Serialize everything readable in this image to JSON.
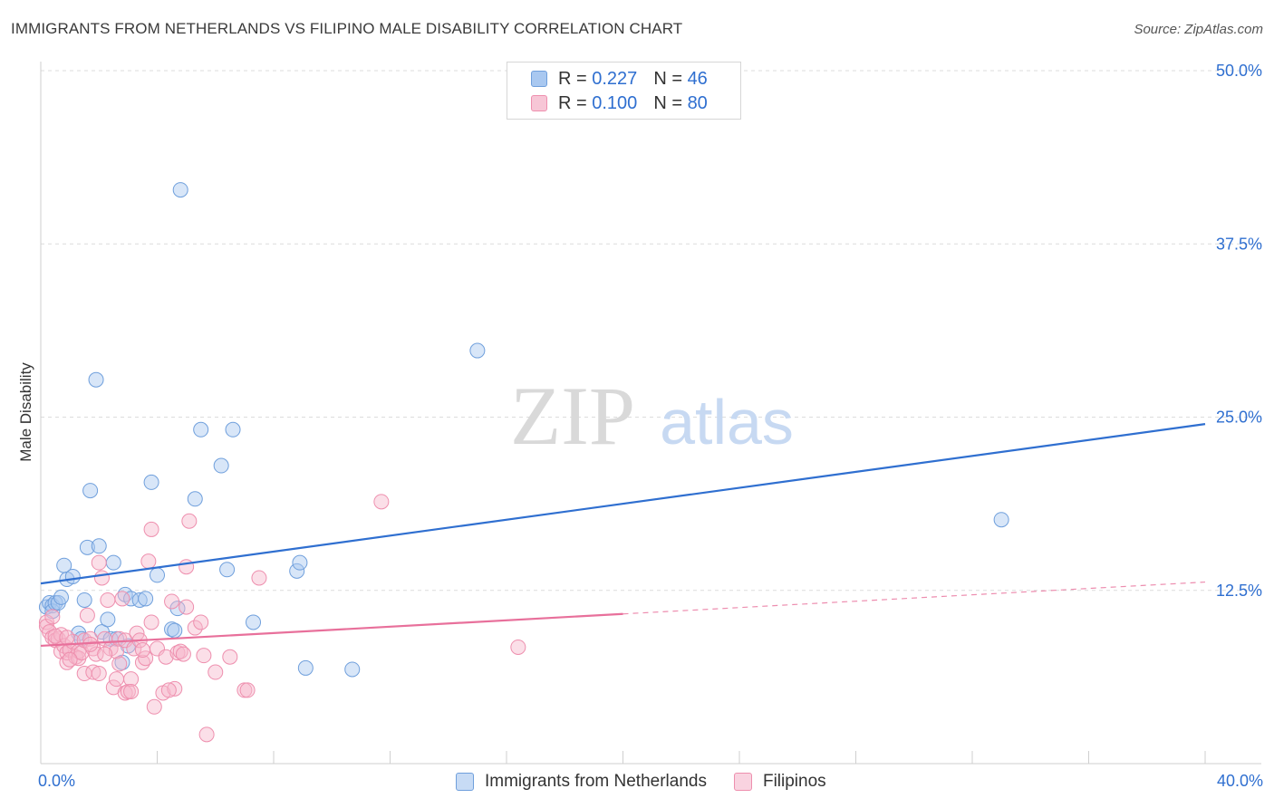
{
  "title": "IMMIGRANTS FROM NETHERLANDS VS FILIPINO MALE DISABILITY CORRELATION CHART",
  "source": "Source: ZipAtlas.com",
  "watermark": {
    "zip": "ZIP",
    "atlas": "atlas"
  },
  "legend_top": {
    "rows": [
      {
        "r_label": "R =",
        "r_value": "0.227",
        "n_label": "N =",
        "n_value": "46"
      },
      {
        "r_label": "R =",
        "r_value": "0.100",
        "n_label": "N =",
        "n_value": "80"
      }
    ]
  },
  "colors": {
    "blue_fill": "#a9c8f0",
    "blue_stroke": "#6f9fdc",
    "blue_line": "#2f6fd0",
    "pink_fill": "#f7b7cb",
    "pink_stroke": "#ee8fae",
    "pink_line": "#e8709b",
    "tick_text": "#2f6fd0",
    "grid": "#dcdcdc"
  },
  "chart_data": {
    "type": "scatter",
    "title": "IMMIGRANTS FROM NETHERLANDS VS FILIPINO MALE DISABILITY CORRELATION CHART",
    "xlabel": "",
    "ylabel": "Male Disability",
    "xlim": [
      0,
      40
    ],
    "ylim": [
      0,
      50
    ],
    "x_tick_labels": [
      "0.0%",
      "40.0%"
    ],
    "y_ticks": [
      12.5,
      25.0,
      37.5,
      50.0
    ],
    "y_tick_labels": [
      "12.5%",
      "25.0%",
      "37.5%",
      "50.0%"
    ],
    "series": [
      {
        "name": "Immigrants from Netherlands",
        "color": "blue",
        "R": 0.227,
        "N": 46,
        "trend": {
          "x0": 0,
          "y0": 13.0,
          "x1": 40,
          "y1": 24.5,
          "dashed_from": null
        },
        "points": [
          [
            0.2,
            11.3
          ],
          [
            0.3,
            11.6
          ],
          [
            0.4,
            11.4
          ],
          [
            0.4,
            11.0
          ],
          [
            0.5,
            11.6
          ],
          [
            0.6,
            11.6
          ],
          [
            0.7,
            12.0
          ],
          [
            0.8,
            14.3
          ],
          [
            0.9,
            13.3
          ],
          [
            1.1,
            13.5
          ],
          [
            1.3,
            9.4
          ],
          [
            1.4,
            9.0
          ],
          [
            1.5,
            11.8
          ],
          [
            1.6,
            15.6
          ],
          [
            1.7,
            19.7
          ],
          [
            1.9,
            27.7
          ],
          [
            2.0,
            15.7
          ],
          [
            2.1,
            9.5
          ],
          [
            2.3,
            10.4
          ],
          [
            2.4,
            9.0
          ],
          [
            2.5,
            14.5
          ],
          [
            2.6,
            9.0
          ],
          [
            2.8,
            7.3
          ],
          [
            2.9,
            12.2
          ],
          [
            3.0,
            8.5
          ],
          [
            3.1,
            11.9
          ],
          [
            3.4,
            11.8
          ],
          [
            3.6,
            11.9
          ],
          [
            3.8,
            20.3
          ],
          [
            4.0,
            13.6
          ],
          [
            4.5,
            9.7
          ],
          [
            4.6,
            9.6
          ],
          [
            4.7,
            11.2
          ],
          [
            4.8,
            41.4
          ],
          [
            5.3,
            19.1
          ],
          [
            5.5,
            24.1
          ],
          [
            6.2,
            21.5
          ],
          [
            6.4,
            14.0
          ],
          [
            6.6,
            24.1
          ],
          [
            7.3,
            10.2
          ],
          [
            8.8,
            13.9
          ],
          [
            8.9,
            14.5
          ],
          [
            9.1,
            6.9
          ],
          [
            10.7,
            6.8
          ],
          [
            15.0,
            29.8
          ],
          [
            33.0,
            17.6
          ]
        ]
      },
      {
        "name": "Filipinos",
        "color": "pink",
        "R": 0.1,
        "N": 80,
        "trend": {
          "x0": 0,
          "y0": 8.5,
          "x1": 40,
          "y1": 13.1,
          "dashed_from": 20.0
        },
        "points": [
          [
            0.2,
            10.2
          ],
          [
            0.2,
            9.9
          ],
          [
            0.3,
            9.5
          ],
          [
            0.4,
            9.1
          ],
          [
            0.4,
            10.6
          ],
          [
            0.5,
            8.9
          ],
          [
            0.6,
            9.0
          ],
          [
            0.7,
            8.1
          ],
          [
            0.7,
            9.3
          ],
          [
            0.8,
            8.5
          ],
          [
            0.9,
            7.3
          ],
          [
            0.9,
            8.0
          ],
          [
            1.0,
            8.2
          ],
          [
            1.1,
            8.8
          ],
          [
            1.2,
            7.7
          ],
          [
            1.3,
            8.1
          ],
          [
            1.3,
            7.6
          ],
          [
            1.4,
            8.0
          ],
          [
            1.5,
            6.5
          ],
          [
            1.5,
            8.9
          ],
          [
            1.6,
            10.7
          ],
          [
            1.7,
            9.0
          ],
          [
            1.8,
            8.3
          ],
          [
            1.8,
            6.6
          ],
          [
            1.9,
            7.9
          ],
          [
            2.0,
            14.5
          ],
          [
            2.0,
            6.5
          ],
          [
            2.1,
            13.4
          ],
          [
            2.2,
            9.0
          ],
          [
            2.3,
            11.8
          ],
          [
            2.4,
            8.3
          ],
          [
            2.5,
            5.5
          ],
          [
            2.6,
            8.1
          ],
          [
            2.6,
            6.1
          ],
          [
            2.7,
            9.0
          ],
          [
            2.8,
            11.9
          ],
          [
            2.9,
            8.9
          ],
          [
            2.9,
            5.1
          ],
          [
            3.0,
            5.2
          ],
          [
            3.1,
            6.1
          ],
          [
            3.1,
            5.2
          ],
          [
            3.2,
            8.3
          ],
          [
            3.3,
            9.4
          ],
          [
            3.4,
            8.9
          ],
          [
            3.5,
            7.3
          ],
          [
            3.6,
            7.6
          ],
          [
            3.7,
            14.6
          ],
          [
            3.8,
            16.9
          ],
          [
            3.8,
            10.2
          ],
          [
            3.9,
            4.1
          ],
          [
            4.0,
            8.3
          ],
          [
            4.2,
            5.1
          ],
          [
            4.3,
            7.7
          ],
          [
            4.5,
            11.7
          ],
          [
            4.6,
            5.4
          ],
          [
            4.7,
            8.0
          ],
          [
            4.8,
            8.1
          ],
          [
            4.9,
            7.9
          ],
          [
            5.0,
            11.3
          ],
          [
            5.0,
            14.2
          ],
          [
            5.1,
            17.5
          ],
          [
            5.3,
            9.8
          ],
          [
            5.5,
            10.2
          ],
          [
            5.6,
            7.8
          ],
          [
            5.7,
            2.1
          ],
          [
            6.0,
            6.6
          ],
          [
            6.5,
            7.7
          ],
          [
            7.0,
            5.3
          ],
          [
            7.1,
            5.3
          ],
          [
            7.5,
            13.4
          ],
          [
            11.7,
            18.9
          ],
          [
            16.4,
            8.4
          ],
          [
            0.5,
            9.2
          ],
          [
            1.0,
            7.5
          ],
          [
            2.2,
            7.9
          ],
          [
            3.5,
            8.2
          ],
          [
            1.7,
            8.6
          ],
          [
            4.4,
            5.3
          ],
          [
            0.9,
            9.1
          ],
          [
            2.7,
            7.2
          ]
        ]
      }
    ]
  },
  "legend_bottom": {
    "items": [
      {
        "label": "Immigrants from Netherlands"
      },
      {
        "label": "Filipinos"
      }
    ]
  }
}
